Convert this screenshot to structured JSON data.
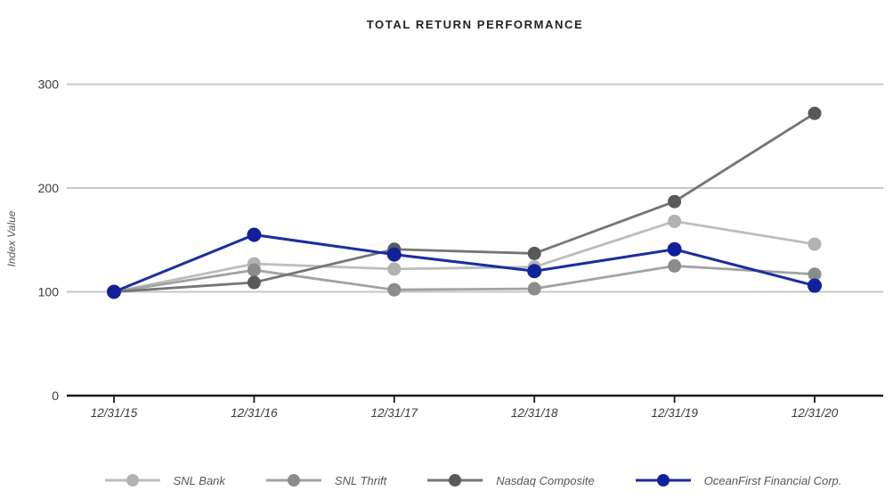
{
  "chart_data": {
    "type": "line",
    "title": "TOTAL RETURN PERFORMANCE",
    "xlabel": "",
    "ylabel": "Index Value",
    "categories": [
      "12/31/15",
      "12/31/16",
      "12/31/17",
      "12/31/18",
      "12/31/19",
      "12/31/20"
    ],
    "yticks": [
      0,
      100,
      200,
      300
    ],
    "ylim": [
      0,
      330
    ],
    "grid": true,
    "legend_position": "bottom",
    "series": [
      {
        "name": "SNL Bank",
        "values": [
          100,
          127,
          122,
          124,
          168,
          146
        ],
        "line_color": "#bdbdbd",
        "marker_color": "#b2b2b2"
      },
      {
        "name": "SNL Thrift",
        "values": [
          100,
          121,
          102,
          103,
          125,
          117
        ],
        "line_color": "#a2a2a2",
        "marker_color": "#8c8c8c"
      },
      {
        "name": "Nasdaq Composite",
        "values": [
          100,
          109,
          141,
          137,
          187,
          272
        ],
        "line_color": "#757575",
        "marker_color": "#595959"
      },
      {
        "name": "OceanFirst Financial Corp.",
        "values": [
          100,
          155,
          136,
          120,
          141,
          106
        ],
        "line_color": "#1b2da0",
        "marker_color": "#12219a"
      }
    ],
    "axis_color": "#1a1a1a",
    "gridline_color": "#c7c7c7",
    "tick_label_color": "#3a3a3a"
  }
}
